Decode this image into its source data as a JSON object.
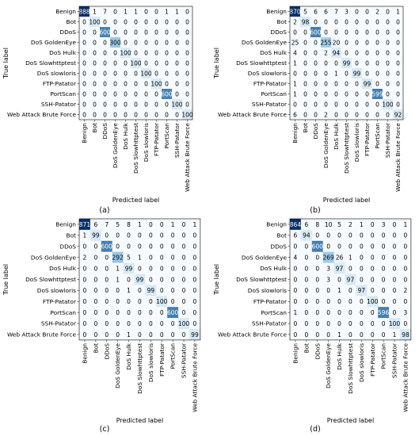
{
  "figure": {
    "x_axis_title": "Predicted label",
    "y_axis_title": "True label"
  },
  "colormap": {
    "name": "Blues",
    "light": "#f7fbff",
    "mid": "#6aaed6",
    "dark": "#08306b",
    "text_light": "#ffffff",
    "text_dark": "#000000"
  },
  "chart_data": [
    {
      "type": "heatmap",
      "panel_label": "(a)",
      "xlabel": "Predicted label",
      "ylabel": "True label",
      "x_categories": [
        "Benign",
        "Bot",
        "DDoS",
        "DoS GoldenEye",
        "DoS Hulk",
        "DoS Slowhttptest",
        "DoS slowloris",
        "FTP-Patator",
        "PortScan",
        "SSH-Patator",
        "Web Attack Brute Force"
      ],
      "y_categories": [
        "Benign",
        "Bot",
        "DDoS",
        "DoS GoldenEye",
        "DoS Hulk",
        "DoS Slowhttptest",
        "DoS slowloris",
        "FTP-Patator",
        "PortScan",
        "SSH-Patator",
        "Web Attack Brute Force"
      ],
      "matrix": [
        [
          888,
          1,
          7,
          0,
          1,
          1,
          0,
          0,
          1,
          1,
          0
        ],
        [
          0,
          100,
          0,
          0,
          0,
          0,
          0,
          0,
          0,
          0,
          0
        ],
        [
          0,
          0,
          600,
          0,
          0,
          0,
          0,
          0,
          0,
          0,
          0
        ],
        [
          0,
          0,
          0,
          300,
          0,
          0,
          0,
          0,
          0,
          0,
          0
        ],
        [
          0,
          0,
          0,
          0,
          100,
          0,
          0,
          0,
          0,
          0,
          0
        ],
        [
          0,
          0,
          0,
          0,
          0,
          100,
          0,
          0,
          0,
          0,
          0
        ],
        [
          0,
          0,
          0,
          0,
          0,
          0,
          100,
          0,
          0,
          0,
          0
        ],
        [
          0,
          0,
          0,
          0,
          0,
          0,
          0,
          100,
          0,
          0,
          0
        ],
        [
          0,
          0,
          0,
          0,
          0,
          0,
          0,
          0,
          600,
          0,
          0
        ],
        [
          0,
          0,
          0,
          0,
          0,
          0,
          0,
          0,
          0,
          100,
          0
        ],
        [
          0,
          0,
          0,
          0,
          0,
          0,
          0,
          0,
          0,
          0,
          100
        ]
      ]
    },
    {
      "type": "heatmap",
      "panel_label": "(b)",
      "xlabel": "Predicted label",
      "ylabel": "True label",
      "x_categories": [
        "Benign",
        "Bot",
        "DDoS",
        "DoS GoldenEye",
        "DoS Hulk",
        "DoS Slowhttptest",
        "DoS slowloris",
        "FTP-Patator",
        "PortScan",
        "SSH-Patator",
        "Web Attack Brute Force"
      ],
      "y_categories": [
        "Benign",
        "Bot",
        "DDoS",
        "DoS GoldenEye",
        "DoS Hulk",
        "DoS Slowhttptest",
        "DoS slowloris",
        "FTP-Patator",
        "PortScan",
        "SSH-Patator",
        "Web Attack Brute Force"
      ],
      "matrix": [
        [
          870,
          5,
          6,
          6,
          7,
          3,
          0,
          0,
          2,
          0,
          1
        ],
        [
          2,
          98,
          0,
          0,
          0,
          0,
          0,
          0,
          0,
          0,
          0
        ],
        [
          0,
          0,
          600,
          0,
          0,
          0,
          0,
          0,
          0,
          0,
          0
        ],
        [
          25,
          0,
          0,
          255,
          20,
          0,
          0,
          0,
          0,
          0,
          0
        ],
        [
          4,
          0,
          0,
          2,
          94,
          0,
          0,
          0,
          0,
          0,
          0
        ],
        [
          1,
          0,
          0,
          0,
          0,
          99,
          0,
          0,
          0,
          0,
          0
        ],
        [
          0,
          0,
          0,
          0,
          1,
          0,
          99,
          0,
          0,
          0,
          0
        ],
        [
          1,
          0,
          0,
          0,
          0,
          0,
          0,
          99,
          0,
          0,
          0
        ],
        [
          1,
          0,
          0,
          0,
          0,
          0,
          0,
          0,
          599,
          0,
          0
        ],
        [
          0,
          0,
          0,
          0,
          0,
          0,
          0,
          0,
          0,
          100,
          0
        ],
        [
          6,
          0,
          0,
          2,
          0,
          0,
          0,
          0,
          0,
          0,
          92
        ]
      ]
    },
    {
      "type": "heatmap",
      "panel_label": "(c)",
      "xlabel": "Predicted label",
      "ylabel": "True label",
      "x_categories": [
        "Benign",
        "Bot",
        "DDoS",
        "DoS GoldenEye",
        "DoS Hulk",
        "DoS Slowhttptest",
        "DoS slowloris",
        "FTP-Patator",
        "PortScan",
        "SSH-Patator",
        "Web Attack Brute Force"
      ],
      "y_categories": [
        "Benign",
        "Bot",
        "DDoS",
        "DoS GoldenEye",
        "DoS Hulk",
        "DoS Slowhttptest",
        "DoS slowloris",
        "FTP-Patator",
        "PortScan",
        "SSH-Patator",
        "Web Attack Brute Force"
      ],
      "matrix": [
        [
          871,
          6,
          7,
          5,
          8,
          1,
          0,
          0,
          1,
          0,
          1
        ],
        [
          1,
          99,
          0,
          0,
          0,
          0,
          0,
          0,
          0,
          0,
          0
        ],
        [
          0,
          0,
          600,
          0,
          0,
          0,
          0,
          0,
          0,
          0,
          0
        ],
        [
          2,
          0,
          0,
          292,
          5,
          1,
          0,
          0,
          0,
          0,
          0
        ],
        [
          0,
          0,
          0,
          1,
          99,
          0,
          0,
          0,
          0,
          0,
          0
        ],
        [
          0,
          0,
          0,
          1,
          0,
          99,
          0,
          0,
          0,
          0,
          0
        ],
        [
          0,
          0,
          0,
          0,
          1,
          0,
          99,
          0,
          0,
          0,
          0
        ],
        [
          0,
          0,
          0,
          0,
          0,
          0,
          0,
          100,
          0,
          0,
          0
        ],
        [
          0,
          0,
          0,
          0,
          0,
          0,
          0,
          0,
          600,
          0,
          0
        ],
        [
          0,
          0,
          0,
          0,
          0,
          0,
          0,
          0,
          0,
          100,
          0
        ],
        [
          0,
          0,
          0,
          0,
          1,
          0,
          0,
          0,
          0,
          0,
          99
        ]
      ]
    },
    {
      "type": "heatmap",
      "panel_label": "(d)",
      "xlabel": "Predicted label",
      "ylabel": "True label",
      "x_categories": [
        "Benign",
        "Bot",
        "DDoS",
        "DoS GoldenEye",
        "DoS Hulk",
        "DoS Slowhttptest",
        "DoS slowloris",
        "FTP-Patator",
        "PortScan",
        "SSH-Patator",
        "Web Attack Brute Force"
      ],
      "y_categories": [
        "Benign",
        "Bot",
        "DDoS",
        "DoS GoldenEye",
        "DoS Hulk",
        "DoS Slowhttptest",
        "DoS slowloris",
        "FTP-Patator",
        "PortScan",
        "SSH-Patator",
        "Web Attack Brute Force"
      ],
      "matrix": [
        [
          864,
          6,
          8,
          10,
          5,
          2,
          1,
          0,
          3,
          0,
          1
        ],
        [
          6,
          94,
          0,
          0,
          0,
          0,
          0,
          0,
          0,
          0,
          0
        ],
        [
          0,
          0,
          600,
          0,
          0,
          0,
          0,
          0,
          0,
          0,
          0
        ],
        [
          4,
          0,
          0,
          269,
          26,
          1,
          0,
          0,
          0,
          0,
          0
        ],
        [
          0,
          0,
          0,
          3,
          97,
          0,
          0,
          0,
          0,
          0,
          0
        ],
        [
          0,
          0,
          0,
          3,
          0,
          97,
          0,
          0,
          0,
          0,
          0
        ],
        [
          0,
          0,
          0,
          0,
          1,
          0,
          97,
          0,
          0,
          0,
          2
        ],
        [
          0,
          0,
          0,
          0,
          0,
          0,
          0,
          100,
          0,
          0,
          0
        ],
        [
          1,
          0,
          0,
          0,
          0,
          0,
          0,
          0,
          596,
          0,
          3
        ],
        [
          0,
          0,
          0,
          0,
          0,
          0,
          0,
          0,
          0,
          100,
          0
        ],
        [
          0,
          0,
          0,
          0,
          1,
          0,
          0,
          0,
          0,
          1,
          98
        ]
      ]
    }
  ]
}
